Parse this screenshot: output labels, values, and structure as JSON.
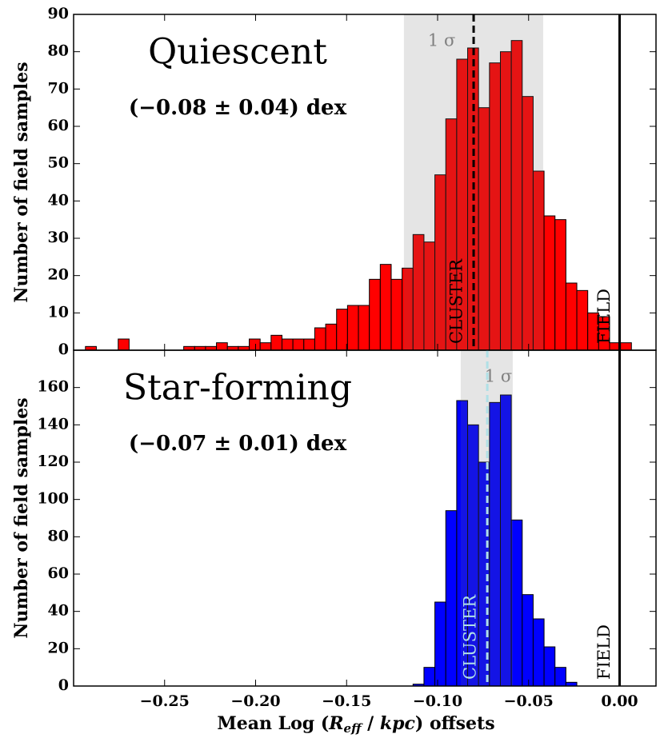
{
  "chart_data": [
    {
      "type": "histogram",
      "title": "Quiescent",
      "subtitle": "(−0.08 ± 0.04) dex",
      "y_label": "Number of field samples",
      "color": "#ff0000",
      "line_color": "#000000",
      "sigma_label": "1 σ",
      "sigma_band": [
        -0.1185,
        -0.042
      ],
      "cluster_label": "CLUSTER",
      "cluster_offset": -0.0802,
      "field_label": "FIELD",
      "field_offset": 0,
      "bins": [
        -0.2935,
        -0.2875,
        -0.2815,
        -0.2755,
        -0.2695,
        -0.2635,
        -0.2575,
        -0.2515,
        -0.2455,
        -0.2395,
        -0.2335,
        -0.2275,
        -0.2215,
        -0.2155,
        -0.2095,
        -0.2035,
        -0.1975,
        -0.1915,
        -0.1855,
        -0.1795,
        -0.1735,
        -0.1675,
        -0.1615,
        -0.1555,
        -0.1495,
        -0.1435,
        -0.1375,
        -0.1315,
        -0.1255,
        -0.1195,
        -0.1135,
        -0.1075,
        -0.1015,
        -0.0955,
        -0.0895,
        -0.0835,
        -0.0775,
        -0.0715,
        -0.0655,
        -0.0595,
        -0.0535,
        -0.0475,
        -0.0415,
        -0.0355,
        -0.0295,
        -0.0235,
        -0.0175,
        -0.0115,
        -0.0055,
        0.0005,
        0.0065
      ],
      "values": [
        1,
        0,
        0,
        3,
        0,
        0,
        0,
        0,
        0,
        1,
        1,
        1,
        2,
        1,
        1,
        3,
        2,
        4,
        3,
        3,
        3,
        6,
        7,
        11,
        12,
        12,
        19,
        23,
        19,
        22,
        31,
        29,
        47,
        62,
        78,
        81,
        65,
        77,
        80,
        83,
        68,
        48,
        36,
        35,
        18,
        16,
        10,
        9,
        2,
        2
      ],
      "xlim": [
        -0.3,
        0.02
      ],
      "ylim": [
        0,
        90
      ],
      "yticks": [
        0,
        10,
        20,
        30,
        40,
        50,
        60,
        70,
        80,
        90
      ]
    },
    {
      "type": "histogram",
      "title": "Star-forming",
      "subtitle": "(−0.07 ± 0.01) dex",
      "y_label": "Number of field samples",
      "color": "#0000ff",
      "line_color": "#b0e0e6",
      "sigma_label": "1 σ",
      "sigma_band": [
        -0.0873,
        -0.0587
      ],
      "cluster_label": "CLUSTER",
      "cluster_offset": -0.0727,
      "field_label": "FIELD",
      "field_offset": 0,
      "bins": [
        -0.1135,
        -0.1075,
        -0.1015,
        -0.0955,
        -0.0895,
        -0.0835,
        -0.0775,
        -0.0715,
        -0.0655,
        -0.0595,
        -0.0535,
        -0.0475,
        -0.0415,
        -0.0355,
        -0.0295,
        -0.0235
      ],
      "values": [
        1,
        10,
        45,
        94,
        153,
        140,
        120,
        152,
        156,
        89,
        49,
        36,
        21,
        10,
        2
      ],
      "xlim": [
        -0.3,
        0.02
      ],
      "ylim": [
        0,
        180
      ],
      "yticks": [
        0,
        20,
        40,
        60,
        80,
        100,
        120,
        140,
        160
      ],
      "xticks": [
        {
          "value": -0.25,
          "label": "−0.25"
        },
        {
          "value": -0.2,
          "label": "−0.20"
        },
        {
          "value": -0.15,
          "label": "−0.15"
        },
        {
          "value": -0.1,
          "label": "−0.10"
        },
        {
          "value": -0.05,
          "label": "−0.05"
        },
        {
          "value": 0,
          "label": "0.00"
        }
      ],
      "x_label": {
        "start": "Mean Log (",
        "symbol": "R",
        "subscript": "eff",
        "middle": " / ",
        "unit": "kpc",
        "end": ") offsets"
      }
    }
  ]
}
